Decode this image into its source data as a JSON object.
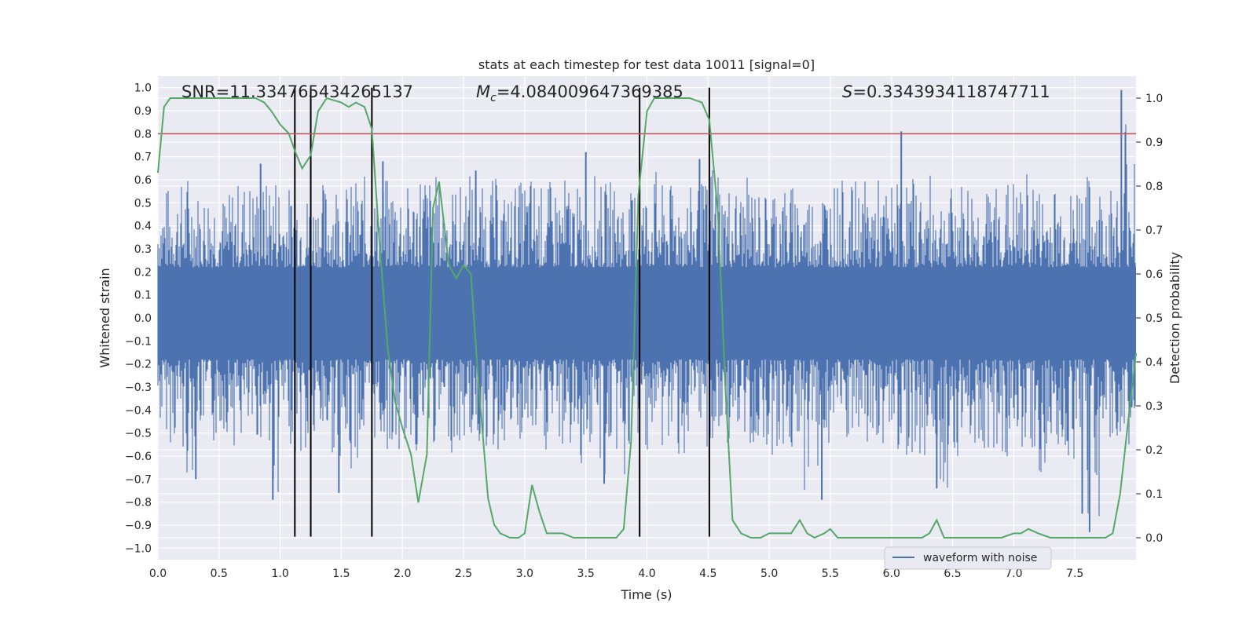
{
  "chart_data": {
    "type": "line",
    "title": "stats at each timestep for test data 10011 [signal=0]",
    "xlabel": "Time (s)",
    "ylabel": "Whitened strain",
    "y2label": "Detection probability",
    "xlim": [
      0.0,
      8.0
    ],
    "ylim": [
      -1.05,
      1.05
    ],
    "y2lim": [
      -0.05,
      1.05
    ],
    "x_ticks": [
      0.0,
      0.5,
      1.0,
      1.5,
      2.0,
      2.5,
      3.0,
      3.5,
      4.0,
      4.5,
      5.0,
      5.5,
      6.0,
      6.5,
      7.0,
      7.5
    ],
    "x_tick_labels": [
      "0.0",
      "0.5",
      "1.0",
      "1.5",
      "2.0",
      "2.5",
      "3.0",
      "3.5",
      "4.0",
      "4.5",
      "5.0",
      "5.5",
      "6.0",
      "6.5",
      "7.0",
      "7.5"
    ],
    "y_ticks": [
      1.0,
      0.9,
      0.8,
      0.7,
      0.6,
      0.5,
      0.4,
      0.3,
      0.2,
      0.1,
      0.0,
      -0.1,
      -0.2,
      -0.3,
      -0.4,
      -0.5,
      -0.6,
      -0.7,
      -0.8,
      -0.9,
      -1.0
    ],
    "y_tick_labels": [
      "1.0",
      "0.9",
      "0.8",
      "0.7",
      "0.6",
      "0.5",
      "0.4",
      "0.3",
      "0.2",
      "0.1",
      "0.0",
      "−0.1",
      "−0.2",
      "−0.3",
      "−0.4",
      "−0.5",
      "−0.6",
      "−0.7",
      "−0.8",
      "−0.9",
      "−1.0"
    ],
    "y2_ticks": [
      1.0,
      0.9,
      0.8,
      0.7,
      0.6,
      0.5,
      0.4,
      0.3,
      0.2,
      0.1,
      0.0
    ],
    "y2_tick_labels": [
      "1.0",
      "0.9",
      "0.8",
      "0.7",
      "0.6",
      "0.5",
      "0.4",
      "0.3",
      "0.2",
      "0.1",
      "0.0"
    ],
    "grid": true,
    "background": "#eaeaf2",
    "annotations": {
      "snr": "SNR=11.334765434265137",
      "mc_symbol": "M",
      "mc_sub": "c",
      "mc_value": "=4.084009647369385",
      "s_symbol": "S",
      "s_value": "=0.3343934118747711"
    },
    "legend": {
      "placement": "bottom-right",
      "entries": [
        "waveform with noise"
      ]
    },
    "waveform": {
      "name": "waveform with noise",
      "color": "#4c72b0",
      "envelope_upper": [
        0.58,
        0.6,
        0.65,
        0.57,
        0.61,
        0.55,
        0.6,
        0.62,
        0.6,
        0.66,
        0.58,
        0.63,
        0.56,
        0.6,
        0.65,
        0.59,
        0.62,
        0.57,
        0.61,
        0.64,
        0.58,
        0.69,
        0.63,
        0.6,
        0.59,
        0.65,
        0.57,
        0.61,
        0.56,
        0.6,
        0.64,
        0.58,
        0.6,
        0.62,
        0.57,
        0.63,
        0.59,
        0.61,
        0.55,
        0.6,
        0.65,
        0.58,
        0.62,
        0.57,
        0.6,
        0.72,
        0.6,
        0.58,
        0.61,
        0.56,
        0.63,
        0.59,
        0.6,
        0.57,
        0.62,
        0.6,
        0.58,
        0.6,
        0.61,
        0.56,
        0.6,
        0.63,
        0.58,
        0.62,
        0.57,
        0.6,
        0.62,
        0.56,
        0.6,
        0.61,
        0.58,
        0.64,
        0.57,
        0.6,
        0.56,
        0.65,
        0.62,
        0.59,
        0.6,
        0.98
      ],
      "envelope_lower": [
        -0.5,
        -0.55,
        -0.7,
        -0.52,
        -0.58,
        -0.5,
        -0.56,
        -0.6,
        -0.54,
        -0.78,
        -0.55,
        -0.62,
        -0.73,
        -0.58,
        -0.6,
        -0.76,
        -0.62,
        -0.55,
        -0.58,
        -0.65,
        -0.56,
        -0.6,
        -0.58,
        -0.54,
        -0.6,
        -0.55,
        -0.58,
        -0.62,
        -0.56,
        -0.6,
        -0.58,
        -0.62,
        -0.56,
        -0.6,
        -0.65,
        -0.6,
        -0.72,
        -0.62,
        -0.72,
        -0.56,
        -0.58,
        -0.6,
        -0.6,
        -0.65,
        -0.58,
        -0.62,
        -0.56,
        -0.6,
        -0.58,
        -0.56,
        -0.6,
        -0.62,
        -0.76,
        -0.68,
        -0.6,
        -0.56,
        -0.58,
        -0.62,
        -0.6,
        -0.56,
        -0.58,
        -0.6,
        -0.62,
        -0.58,
        -0.74,
        -0.6,
        -0.56,
        -0.58,
        -0.6,
        -0.62,
        -0.58,
        -0.6,
        -0.76,
        -0.6,
        -0.62,
        -0.58,
        -0.92,
        -0.62,
        -0.58,
        -0.55
      ],
      "spikes": [
        [
          0.31,
          -0.7
        ],
        [
          0.94,
          -0.79
        ],
        [
          0.84,
          0.67
        ],
        [
          1.84,
          0.68
        ],
        [
          1.48,
          -0.76
        ],
        [
          2.6,
          0.64
        ],
        [
          3.5,
          0.72
        ],
        [
          3.65,
          -0.72
        ],
        [
          4.43,
          0.69
        ],
        [
          5.43,
          -0.79
        ],
        [
          6.08,
          0.81
        ],
        [
          6.37,
          -0.74
        ],
        [
          7.56,
          -0.85
        ],
        [
          7.62,
          -0.93
        ],
        [
          7.88,
          0.99
        ]
      ]
    },
    "threshold": {
      "y": 0.8,
      "color": "#c44e52"
    },
    "vlines": {
      "x": [
        1.12,
        1.25,
        1.75,
        3.94,
        4.51
      ],
      "y_top": 1.0,
      "y_bottom": -0.95,
      "color": "#000000"
    },
    "detection_probability": {
      "name": "Detection probability",
      "color": "#55a868",
      "points": [
        [
          0.0,
          0.83
        ],
        [
          0.05,
          0.98
        ],
        [
          0.1,
          1.0
        ],
        [
          0.2,
          1.0
        ],
        [
          0.4,
          1.0
        ],
        [
          0.6,
          1.0
        ],
        [
          0.8,
          1.0
        ],
        [
          0.87,
          0.99
        ],
        [
          0.93,
          0.97
        ],
        [
          1.0,
          0.94
        ],
        [
          1.07,
          0.92
        ],
        [
          1.12,
          0.88
        ],
        [
          1.18,
          0.84
        ],
        [
          1.25,
          0.87
        ],
        [
          1.31,
          0.97
        ],
        [
          1.38,
          1.0
        ],
        [
          1.5,
          0.99
        ],
        [
          1.56,
          0.98
        ],
        [
          1.62,
          0.99
        ],
        [
          1.69,
          0.98
        ],
        [
          1.75,
          0.93
        ],
        [
          1.81,
          0.68
        ],
        [
          1.88,
          0.43
        ],
        [
          1.94,
          0.31
        ],
        [
          2.0,
          0.25
        ],
        [
          2.07,
          0.19
        ],
        [
          2.13,
          0.08
        ],
        [
          2.2,
          0.19
        ],
        [
          2.25,
          0.75
        ],
        [
          2.3,
          0.81
        ],
        [
          2.38,
          0.62
        ],
        [
          2.44,
          0.59
        ],
        [
          2.5,
          0.62
        ],
        [
          2.56,
          0.6
        ],
        [
          2.62,
          0.36
        ],
        [
          2.7,
          0.09
        ],
        [
          2.75,
          0.03
        ],
        [
          2.8,
          0.01
        ],
        [
          2.88,
          0.0
        ],
        [
          2.95,
          0.0
        ],
        [
          3.0,
          0.01
        ],
        [
          3.06,
          0.12
        ],
        [
          3.12,
          0.06
        ],
        [
          3.18,
          0.01
        ],
        [
          3.25,
          0.01
        ],
        [
          3.31,
          0.01
        ],
        [
          3.4,
          0.0
        ],
        [
          3.5,
          0.0
        ],
        [
          3.62,
          0.0
        ],
        [
          3.75,
          0.0
        ],
        [
          3.81,
          0.02
        ],
        [
          3.87,
          0.22
        ],
        [
          3.93,
          0.78
        ],
        [
          4.0,
          0.97
        ],
        [
          4.06,
          1.0
        ],
        [
          4.2,
          1.0
        ],
        [
          4.35,
          1.0
        ],
        [
          4.45,
          0.99
        ],
        [
          4.51,
          0.95
        ],
        [
          4.58,
          0.74
        ],
        [
          4.64,
          0.35
        ],
        [
          4.7,
          0.04
        ],
        [
          4.77,
          0.01
        ],
        [
          4.85,
          0.0
        ],
        [
          4.93,
          0.0
        ],
        [
          5.0,
          0.01
        ],
        [
          5.06,
          0.01
        ],
        [
          5.12,
          0.01
        ],
        [
          5.18,
          0.01
        ],
        [
          5.25,
          0.04
        ],
        [
          5.31,
          0.01
        ],
        [
          5.37,
          0.0
        ],
        [
          5.45,
          0.01
        ],
        [
          5.5,
          0.02
        ],
        [
          5.56,
          0.0
        ],
        [
          5.62,
          0.0
        ],
        [
          5.75,
          0.0
        ],
        [
          5.87,
          0.0
        ],
        [
          6.0,
          0.0
        ],
        [
          6.12,
          0.0
        ],
        [
          6.25,
          0.0
        ],
        [
          6.31,
          0.01
        ],
        [
          6.37,
          0.04
        ],
        [
          6.43,
          0.0
        ],
        [
          6.5,
          0.0
        ],
        [
          6.6,
          0.0
        ],
        [
          6.75,
          0.0
        ],
        [
          6.9,
          0.0
        ],
        [
          7.0,
          0.01
        ],
        [
          7.06,
          0.01
        ],
        [
          7.12,
          0.02
        ],
        [
          7.2,
          0.01
        ],
        [
          7.3,
          0.0
        ],
        [
          7.45,
          0.0
        ],
        [
          7.6,
          0.0
        ],
        [
          7.75,
          0.0
        ],
        [
          7.81,
          0.01
        ],
        [
          7.87,
          0.1
        ],
        [
          7.93,
          0.25
        ],
        [
          8.0,
          0.42
        ]
      ]
    }
  }
}
